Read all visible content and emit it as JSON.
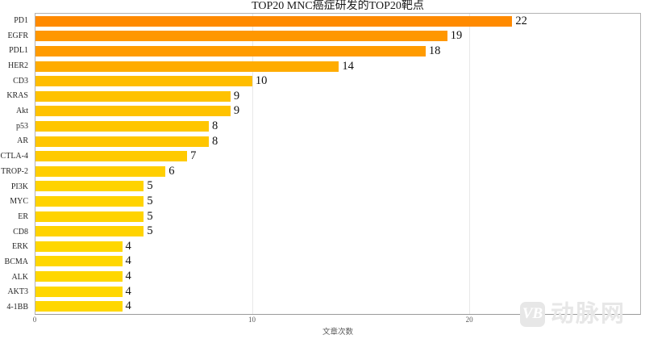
{
  "chart_data": {
    "type": "bar",
    "orientation": "horizontal",
    "title": "TOP20 MNC癌症研发的TOP20靶点",
    "xlabel": "文章次数",
    "ylabel": "",
    "categories": [
      "PD1",
      "EGFR",
      "PDL1",
      "HER2",
      "CD3",
      "KRAS",
      "Akt",
      "p53",
      "AR",
      "CTLA-4",
      "TROP-2",
      "PI3K",
      "MYC",
      "ER",
      "CD8",
      "ERK",
      "BCMA",
      "ALK",
      "AKT3",
      "4-1BB"
    ],
    "values": [
      22,
      19,
      18,
      14,
      10,
      9,
      9,
      8,
      8,
      7,
      6,
      5,
      5,
      5,
      5,
      4,
      4,
      4,
      4,
      4
    ],
    "bar_colors": [
      "#FF8A00",
      "#FF9700",
      "#FF9B00",
      "#FFAC00",
      "#FFBD00",
      "#FFC200",
      "#FFC200",
      "#FFC600",
      "#FFC600",
      "#FFCA00",
      "#FFCE00",
      "#FFD300",
      "#FFD300",
      "#FFD300",
      "#FFD300",
      "#FFD700",
      "#FFD700",
      "#FFD700",
      "#FFD700",
      "#FFD700"
    ],
    "xlim": [
      0,
      27.9
    ],
    "xticks": [
      0,
      10,
      20
    ],
    "grid": "vertical",
    "legend": "none",
    "value_labels_shown": true
  },
  "watermark": {
    "logo": "VB",
    "text": "动脉网"
  },
  "colors": {
    "gridline": "#e8e8e8",
    "axis_border": "#b3b3b3",
    "tick_text": "#595959",
    "value_text": "#111111",
    "watermark": "#e7e7e7",
    "bar_color_high": "#FF8A00",
    "bar_color_low": "#FFD700"
  }
}
